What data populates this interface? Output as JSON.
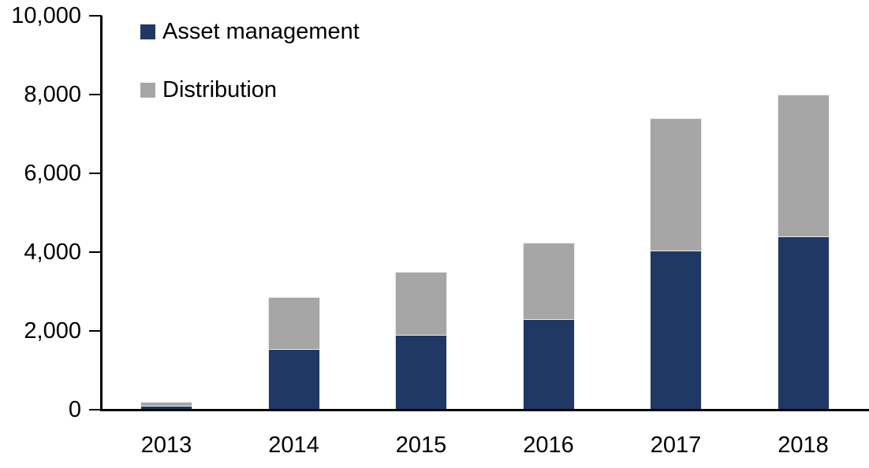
{
  "chart_data": {
    "type": "bar",
    "stacked": true,
    "title": "",
    "xlabel": "",
    "ylabel": "",
    "categories": [
      "2013",
      "2014",
      "2015",
      "2016",
      "2017",
      "2018"
    ],
    "series": [
      {
        "name": "Asset management",
        "color": "#1F3864",
        "values": [
          100,
          1550,
          1900,
          2300,
          4050,
          4400
        ]
      },
      {
        "name": "Distribution",
        "color": "#A6A6A6",
        "values": [
          100,
          1320,
          1600,
          1950,
          3350,
          3600
        ]
      }
    ],
    "stack_totals": [
      200,
      2870,
      3500,
      4250,
      7400,
      8000
    ],
    "ylim": [
      0,
      10000
    ],
    "ytick_interval": 2000,
    "ytick_labels": [
      "0",
      "2,000",
      "4,000",
      "6,000",
      "8,000",
      "10,000"
    ],
    "grid": false,
    "legend_position": "top-left",
    "axis_color": "#000000",
    "text_color": "#000000",
    "bar_border_color": "#ECECEC"
  }
}
